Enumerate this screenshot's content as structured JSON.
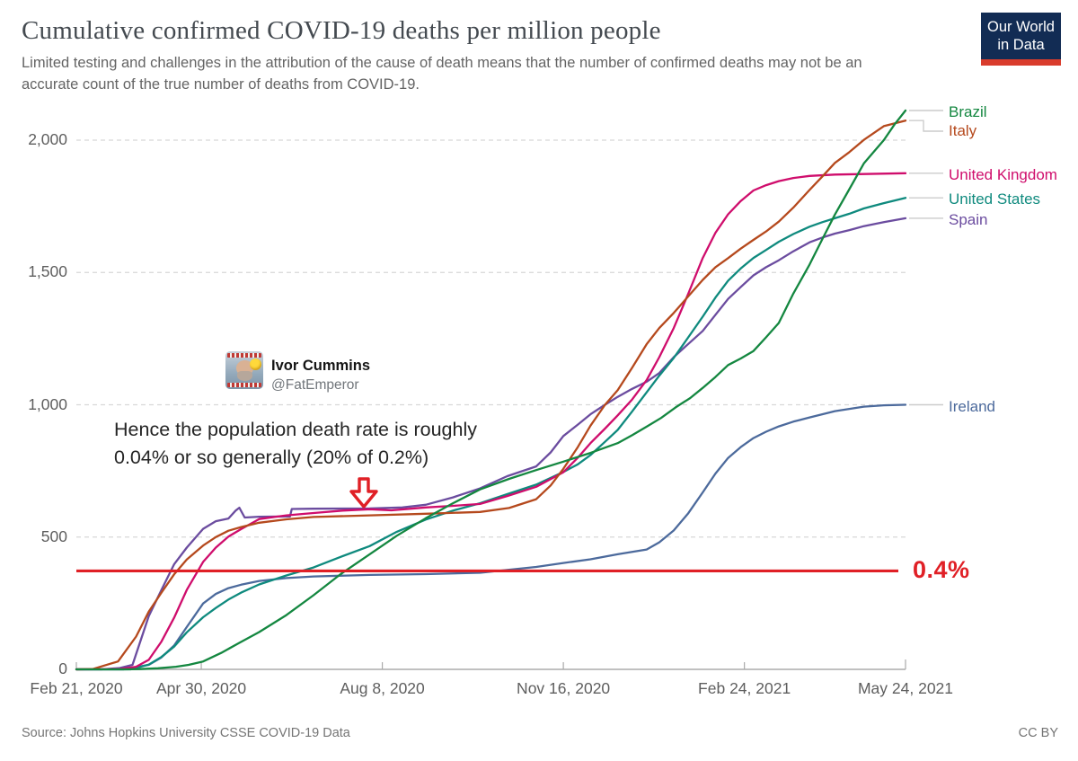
{
  "header": {
    "title": "Cumulative confirmed COVID-19 deaths per million people",
    "subtitle_line1": "Limited testing and challenges in the attribution of the cause of death means that the number of confirmed deaths may not be an",
    "subtitle_line2": "accurate count of the true number of deaths from COVID-19.",
    "logo_line1": "Our World",
    "logo_line2": "in Data",
    "logo_bg_color": "#122C54",
    "logo_bar_color": "#D93C2C"
  },
  "tweet": {
    "name": "Ivor Cummins",
    "handle": "@FatEmperor"
  },
  "annotation": {
    "line1": "Hence the population death rate is roughly",
    "line2": "0.04% or so generally (20% of 0.2%)",
    "arrow_icon": "hollow-down-arrow",
    "arrow_color": "#E02026"
  },
  "footer": {
    "source": "Source: Johns Hopkins University CSSE COVID-19 Data",
    "license": "CC BY"
  },
  "chart_data": {
    "type": "line",
    "title": "Cumulative confirmed COVID-19 deaths per million people",
    "x_axis": {
      "unit": "date",
      "range_days": [
        0,
        458
      ],
      "ticks": [
        {
          "day": 0,
          "label": "Feb 21, 2020"
        },
        {
          "day": 69,
          "label": "Apr 30, 2020"
        },
        {
          "day": 169,
          "label": "Aug 8, 2020"
        },
        {
          "day": 269,
          "label": "Nov 16, 2020"
        },
        {
          "day": 369,
          "label": "Feb 24, 2021"
        },
        {
          "day": 458,
          "label": "May 24, 2021"
        }
      ]
    },
    "y_axis": {
      "ylim": [
        0,
        2150
      ],
      "ticks": [
        0,
        500,
        1000,
        1500,
        2000
      ],
      "tick_labels": [
        "0",
        "500",
        "1,000",
        "1,500",
        "2,000"
      ],
      "gridlines": "dashed"
    },
    "threshold_line": {
      "value": 372,
      "label": "0.4%",
      "color": "#E02026"
    },
    "legend_position": "right",
    "series": [
      {
        "name": "Ireland",
        "color": "#4C6A9C",
        "end_value": 1000,
        "points": [
          [
            0,
            0
          ],
          [
            26,
            0
          ],
          [
            40,
            17
          ],
          [
            47,
            45
          ],
          [
            54,
            90
          ],
          [
            61,
            160
          ],
          [
            70,
            249
          ],
          [
            77,
            285
          ],
          [
            84,
            307
          ],
          [
            91,
            320
          ],
          [
            101,
            334
          ],
          [
            116,
            345
          ],
          [
            131,
            351
          ],
          [
            162,
            357
          ],
          [
            193,
            360
          ],
          [
            223,
            365
          ],
          [
            254,
            387
          ],
          [
            269,
            402
          ],
          [
            284,
            416
          ],
          [
            299,
            435
          ],
          [
            315,
            453
          ],
          [
            322,
            480
          ],
          [
            330,
            525
          ],
          [
            338,
            590
          ],
          [
            346,
            669
          ],
          [
            353,
            740
          ],
          [
            360,
            799
          ],
          [
            367,
            840
          ],
          [
            374,
            874
          ],
          [
            381,
            898
          ],
          [
            388,
            918
          ],
          [
            396,
            936
          ],
          [
            405,
            952
          ],
          [
            419,
            976
          ],
          [
            435,
            993
          ],
          [
            446,
            998
          ],
          [
            458,
            1000
          ]
        ]
      },
      {
        "name": "Spain",
        "color": "#6B4C9F",
        "end_value": 1705,
        "points": [
          [
            0,
            0
          ],
          [
            14,
            0
          ],
          [
            24,
            5
          ],
          [
            31,
            17
          ],
          [
            40,
            201
          ],
          [
            47,
            300
          ],
          [
            54,
            397
          ],
          [
            61,
            460
          ],
          [
            70,
            531
          ],
          [
            77,
            560
          ],
          [
            84,
            570
          ],
          [
            88,
            600
          ],
          [
            90,
            611
          ],
          [
            93,
            574
          ],
          [
            101,
            577
          ],
          [
            118,
            578
          ],
          [
            119,
            606
          ],
          [
            131,
            607
          ],
          [
            162,
            608
          ],
          [
            180,
            612
          ],
          [
            193,
            622
          ],
          [
            208,
            650
          ],
          [
            223,
            684
          ],
          [
            238,
            730
          ],
          [
            254,
            767
          ],
          [
            262,
            820
          ],
          [
            269,
            882
          ],
          [
            277,
            925
          ],
          [
            284,
            964
          ],
          [
            292,
            1000
          ],
          [
            299,
            1030
          ],
          [
            307,
            1060
          ],
          [
            315,
            1087
          ],
          [
            322,
            1120
          ],
          [
            330,
            1180
          ],
          [
            338,
            1230
          ],
          [
            346,
            1279
          ],
          [
            353,
            1340
          ],
          [
            360,
            1400
          ],
          [
            367,
            1445
          ],
          [
            374,
            1489
          ],
          [
            381,
            1520
          ],
          [
            388,
            1546
          ],
          [
            396,
            1580
          ],
          [
            405,
            1614
          ],
          [
            412,
            1632
          ],
          [
            419,
            1647
          ],
          [
            427,
            1660
          ],
          [
            435,
            1675
          ],
          [
            446,
            1690
          ],
          [
            458,
            1705
          ]
        ]
      },
      {
        "name": "United States",
        "color": "#0F8A7E",
        "end_value": 1782,
        "points": [
          [
            0,
            0
          ],
          [
            30,
            0
          ],
          [
            40,
            18
          ],
          [
            47,
            47
          ],
          [
            54,
            86
          ],
          [
            61,
            140
          ],
          [
            70,
            197
          ],
          [
            77,
            232
          ],
          [
            84,
            264
          ],
          [
            91,
            290
          ],
          [
            101,
            321
          ],
          [
            116,
            355
          ],
          [
            131,
            385
          ],
          [
            146,
            425
          ],
          [
            162,
            466
          ],
          [
            177,
            520
          ],
          [
            193,
            566
          ],
          [
            208,
            600
          ],
          [
            223,
            628
          ],
          [
            238,
            662
          ],
          [
            254,
            698
          ],
          [
            269,
            746
          ],
          [
            277,
            775
          ],
          [
            284,
            810
          ],
          [
            292,
            860
          ],
          [
            299,
            905
          ],
          [
            307,
            975
          ],
          [
            315,
            1047
          ],
          [
            322,
            1110
          ],
          [
            330,
            1177
          ],
          [
            338,
            1255
          ],
          [
            346,
            1333
          ],
          [
            353,
            1405
          ],
          [
            360,
            1469
          ],
          [
            367,
            1515
          ],
          [
            374,
            1555
          ],
          [
            381,
            1585
          ],
          [
            388,
            1616
          ],
          [
            396,
            1645
          ],
          [
            405,
            1673
          ],
          [
            412,
            1690
          ],
          [
            419,
            1705
          ],
          [
            427,
            1722
          ],
          [
            435,
            1742
          ],
          [
            446,
            1762
          ],
          [
            458,
            1782
          ]
        ]
      },
      {
        "name": "United Kingdom",
        "color": "#CF0D6C",
        "end_value": 1875,
        "points": [
          [
            0,
            0
          ],
          [
            24,
            1
          ],
          [
            33,
            10
          ],
          [
            40,
            36
          ],
          [
            47,
            105
          ],
          [
            54,
            195
          ],
          [
            61,
            300
          ],
          [
            70,
            406
          ],
          [
            77,
            460
          ],
          [
            84,
            502
          ],
          [
            91,
            530
          ],
          [
            101,
            568
          ],
          [
            116,
            582
          ],
          [
            131,
            591
          ],
          [
            147,
            600
          ],
          [
            162,
            605
          ],
          [
            174,
            601
          ],
          [
            193,
            612
          ],
          [
            208,
            618
          ],
          [
            223,
            625
          ],
          [
            238,
            655
          ],
          [
            254,
            690
          ],
          [
            269,
            745
          ],
          [
            277,
            800
          ],
          [
            284,
            855
          ],
          [
            292,
            910
          ],
          [
            299,
            960
          ],
          [
            307,
            1020
          ],
          [
            315,
            1093
          ],
          [
            322,
            1180
          ],
          [
            330,
            1290
          ],
          [
            338,
            1420
          ],
          [
            346,
            1555
          ],
          [
            353,
            1650
          ],
          [
            360,
            1720
          ],
          [
            367,
            1770
          ],
          [
            374,
            1810
          ],
          [
            381,
            1830
          ],
          [
            388,
            1845
          ],
          [
            396,
            1857
          ],
          [
            405,
            1865
          ],
          [
            419,
            1870
          ],
          [
            435,
            1872
          ],
          [
            458,
            1875
          ]
        ]
      },
      {
        "name": "Italy",
        "color": "#B5491D",
        "end_value": 2074,
        "points": [
          [
            0,
            0
          ],
          [
            9,
            1
          ],
          [
            23,
            30
          ],
          [
            33,
            124
          ],
          [
            40,
            218
          ],
          [
            47,
            290
          ],
          [
            54,
            359
          ],
          [
            61,
            415
          ],
          [
            70,
            468
          ],
          [
            77,
            500
          ],
          [
            84,
            524
          ],
          [
            91,
            538
          ],
          [
            101,
            554
          ],
          [
            116,
            567
          ],
          [
            131,
            576
          ],
          [
            162,
            582
          ],
          [
            193,
            588
          ],
          [
            223,
            595
          ],
          [
            239,
            610
          ],
          [
            254,
            643
          ],
          [
            262,
            695
          ],
          [
            269,
            758
          ],
          [
            277,
            840
          ],
          [
            284,
            921
          ],
          [
            292,
            1000
          ],
          [
            299,
            1055
          ],
          [
            307,
            1140
          ],
          [
            315,
            1229
          ],
          [
            322,
            1290
          ],
          [
            330,
            1347
          ],
          [
            338,
            1410
          ],
          [
            346,
            1472
          ],
          [
            353,
            1520
          ],
          [
            360,
            1554
          ],
          [
            367,
            1590
          ],
          [
            374,
            1623
          ],
          [
            381,
            1655
          ],
          [
            388,
            1692
          ],
          [
            396,
            1745
          ],
          [
            405,
            1812
          ],
          [
            412,
            1862
          ],
          [
            419,
            1914
          ],
          [
            427,
            1955
          ],
          [
            435,
            2001
          ],
          [
            446,
            2053
          ],
          [
            458,
            2074
          ]
        ]
      },
      {
        "name": "Brazil",
        "color": "#148740",
        "end_value": 2112,
        "points": [
          [
            0,
            0
          ],
          [
            26,
            0
          ],
          [
            35,
            1
          ],
          [
            45,
            4
          ],
          [
            55,
            10
          ],
          [
            62,
            17
          ],
          [
            70,
            30
          ],
          [
            80,
            62
          ],
          [
            90,
            100
          ],
          [
            101,
            141
          ],
          [
            116,
            205
          ],
          [
            131,
            280
          ],
          [
            146,
            360
          ],
          [
            162,
            435
          ],
          [
            177,
            505
          ],
          [
            193,
            571
          ],
          [
            208,
            628
          ],
          [
            223,
            680
          ],
          [
            239,
            720
          ],
          [
            254,
            753
          ],
          [
            269,
            785
          ],
          [
            284,
            818
          ],
          [
            299,
            855
          ],
          [
            307,
            885
          ],
          [
            315,
            917
          ],
          [
            323,
            950
          ],
          [
            331,
            990
          ],
          [
            339,
            1025
          ],
          [
            346,
            1064
          ],
          [
            353,
            1105
          ],
          [
            360,
            1150
          ],
          [
            367,
            1175
          ],
          [
            374,
            1203
          ],
          [
            381,
            1255
          ],
          [
            388,
            1309
          ],
          [
            396,
            1420
          ],
          [
            405,
            1530
          ],
          [
            412,
            1625
          ],
          [
            419,
            1719
          ],
          [
            427,
            1815
          ],
          [
            435,
            1912
          ],
          [
            441,
            1960
          ],
          [
            446,
            2000
          ],
          [
            452,
            2060
          ],
          [
            458,
            2112
          ]
        ]
      }
    ]
  }
}
